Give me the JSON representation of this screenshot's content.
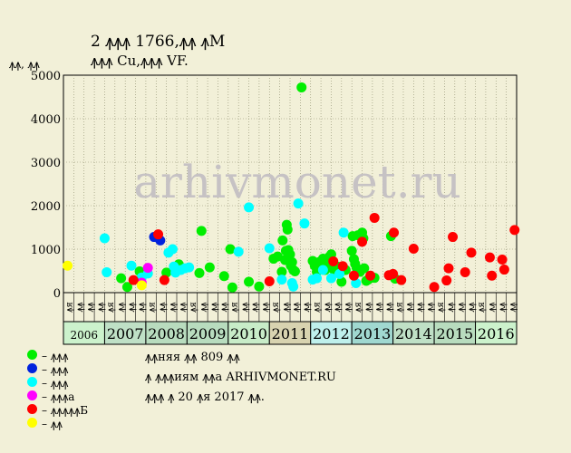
{
  "header": {
    "title_line1": "2 ꙟꙟꙟ 1766,ꙟꙟ ꙟМ",
    "title_line2": "ꙟꙟꙟ Cu,ꙟꙟꙟ VF."
  },
  "note": {
    "line1": "ꙟꙟняя ꙟꙟ 809 ꙟꙟ",
    "line2": "ꙟ ꙟꙟꙟиям ꙟꙟа ARHIVMONET.RU",
    "line3": "ꙟꙟꙟ ꙟ 20 ꙟя 2017 ꙟꙟ."
  },
  "watermark": "arhivmonet.ru",
  "legend": [
    {
      "label": "– ꙟꙟꙟ",
      "color": "#00ee00"
    },
    {
      "label": "– ꙟꙟꙟ",
      "color": "#0022dd"
    },
    {
      "label": "– ꙟꙟꙟ",
      "color": "#00ffff"
    },
    {
      "label": "– ꙟꙟꙟа",
      "color": "#ff00ff"
    },
    {
      "label": "– ꙟꙟꙟꙟꙟБ",
      "color": "#ff0000"
    },
    {
      "label": "– ꙟꙟ",
      "color": "#ffff00"
    }
  ],
  "chart_data": {
    "type": "scatter",
    "ylabel": "ꙟꙟ, ꙟꙟ",
    "ylim": [
      0,
      5000
    ],
    "yticks": [
      0,
      1000,
      2000,
      3000,
      4000,
      5000
    ],
    "grid": true,
    "legend_position": "bottom-left",
    "xlim": [
      2006.0,
      2017.0
    ],
    "years": [
      "2006",
      "2007",
      "2008",
      "2009",
      "2010",
      "2011",
      "2012",
      "2013",
      "2014",
      "2015",
      "2016"
    ],
    "year_colors": [
      "#ccf2cc",
      "#bfe0c6",
      "#b8dcbe",
      "#b8dcbe",
      "#c8ecc8",
      "#d8d3b0",
      "#bff0ec",
      "#a0d8d0",
      "#bfe0c6",
      "#b8dcbe",
      "#ccf2cc"
    ],
    "quarter_labels": [
      "ꙟя",
      "ꙟꙟ",
      "ꙟꙟ",
      "ꙟꙟ"
    ],
    "series": [
      {
        "name": "– ꙟꙟꙟ",
        "color": "#00ee00",
        "points": [
          [
            2007.4,
            330
          ],
          [
            2007.55,
            130
          ],
          [
            2007.85,
            490
          ],
          [
            2008.5,
            460
          ],
          [
            2008.8,
            650
          ],
          [
            2009.35,
            1420
          ],
          [
            2009.3,
            450
          ],
          [
            2009.55,
            580
          ],
          [
            2009.9,
            380
          ],
          [
            2010.05,
            1000
          ],
          [
            2010.1,
            120
          ],
          [
            2010.5,
            250
          ],
          [
            2010.75,
            140
          ],
          [
            2011.1,
            780
          ],
          [
            2011.2,
            830
          ],
          [
            2011.3,
            480
          ],
          [
            2011.32,
            1200
          ],
          [
            2011.38,
            750
          ],
          [
            2011.4,
            960
          ],
          [
            2011.42,
            1560
          ],
          [
            2011.44,
            1450
          ],
          [
            2011.46,
            980
          ],
          [
            2011.5,
            880
          ],
          [
            2011.52,
            620
          ],
          [
            2011.55,
            700
          ],
          [
            2011.58,
            520
          ],
          [
            2011.62,
            490
          ],
          [
            2011.78,
            4720
          ],
          [
            2012.05,
            730
          ],
          [
            2012.1,
            620
          ],
          [
            2012.15,
            480
          ],
          [
            2012.2,
            700
          ],
          [
            2012.25,
            600
          ],
          [
            2012.3,
            780
          ],
          [
            2012.35,
            520
          ],
          [
            2012.4,
            640
          ],
          [
            2012.45,
            820
          ],
          [
            2012.5,
            880
          ],
          [
            2012.55,
            540
          ],
          [
            2012.65,
            600
          ],
          [
            2012.75,
            250
          ],
          [
            2012.85,
            520
          ],
          [
            2013.0,
            960
          ],
          [
            2013.02,
            1300
          ],
          [
            2013.05,
            770
          ],
          [
            2013.08,
            660
          ],
          [
            2013.12,
            560
          ],
          [
            2013.15,
            1320
          ],
          [
            2013.2,
            480
          ],
          [
            2013.25,
            1380
          ],
          [
            2013.28,
            1250
          ],
          [
            2013.3,
            560
          ],
          [
            2013.35,
            270
          ],
          [
            2013.4,
            300
          ],
          [
            2013.55,
            340
          ],
          [
            2013.95,
            1300
          ],
          [
            2014.05,
            320
          ]
        ]
      },
      {
        "name": "– ꙟꙟꙟ",
        "color": "#0022dd",
        "points": [
          [
            2008.2,
            1280
          ],
          [
            2008.35,
            1200
          ]
        ]
      },
      {
        "name": "– ꙟꙟꙟ",
        "color": "#00ffff",
        "points": [
          [
            2007.0,
            1250
          ],
          [
            2007.05,
            470
          ],
          [
            2007.65,
            620
          ],
          [
            2007.9,
            350
          ],
          [
            2008.05,
            440
          ],
          [
            2008.55,
            920
          ],
          [
            2008.65,
            1000
          ],
          [
            2008.68,
            600
          ],
          [
            2008.72,
            460
          ],
          [
            2008.85,
            520
          ],
          [
            2008.95,
            560
          ],
          [
            2009.05,
            580
          ],
          [
            2010.25,
            940
          ],
          [
            2010.5,
            1960
          ],
          [
            2011.0,
            1020
          ],
          [
            2011.3,
            300
          ],
          [
            2011.55,
            220
          ],
          [
            2011.58,
            140
          ],
          [
            2011.7,
            2050
          ],
          [
            2011.85,
            1590
          ],
          [
            2012.05,
            300
          ],
          [
            2012.15,
            330
          ],
          [
            2012.3,
            520
          ],
          [
            2012.5,
            330
          ],
          [
            2012.7,
            430
          ],
          [
            2012.8,
            1380
          ],
          [
            2013.1,
            220
          ]
        ]
      },
      {
        "name": "– ꙟꙟꙟа",
        "color": "#ff00ff",
        "points": [
          [
            2007.9,
            230
          ],
          [
            2008.05,
            570
          ]
        ]
      },
      {
        "name": "– ꙟꙟꙟꙟꙟБ",
        "color": "#ff0000",
        "points": [
          [
            2007.7,
            290
          ],
          [
            2008.3,
            1340
          ],
          [
            2008.45,
            290
          ],
          [
            2011.0,
            260
          ],
          [
            2012.55,
            720
          ],
          [
            2012.78,
            610
          ],
          [
            2013.05,
            390
          ],
          [
            2013.25,
            1170
          ],
          [
            2013.45,
            390
          ],
          [
            2013.55,
            1720
          ],
          [
            2013.9,
            400
          ],
          [
            2014.0,
            430
          ],
          [
            2014.02,
            1380
          ],
          [
            2014.2,
            290
          ],
          [
            2014.5,
            1010
          ],
          [
            2015.0,
            130
          ],
          [
            2015.3,
            280
          ],
          [
            2015.35,
            560
          ],
          [
            2015.45,
            1280
          ],
          [
            2015.75,
            470
          ],
          [
            2015.9,
            920
          ],
          [
            2016.35,
            810
          ],
          [
            2016.4,
            390
          ],
          [
            2016.65,
            760
          ],
          [
            2016.7,
            530
          ],
          [
            2016.95,
            1440
          ]
        ]
      },
      {
        "name": "– ꙟꙟ",
        "color": "#ffff00",
        "points": [
          [
            2006.1,
            620
          ],
          [
            2007.9,
            170
          ]
        ]
      }
    ]
  }
}
